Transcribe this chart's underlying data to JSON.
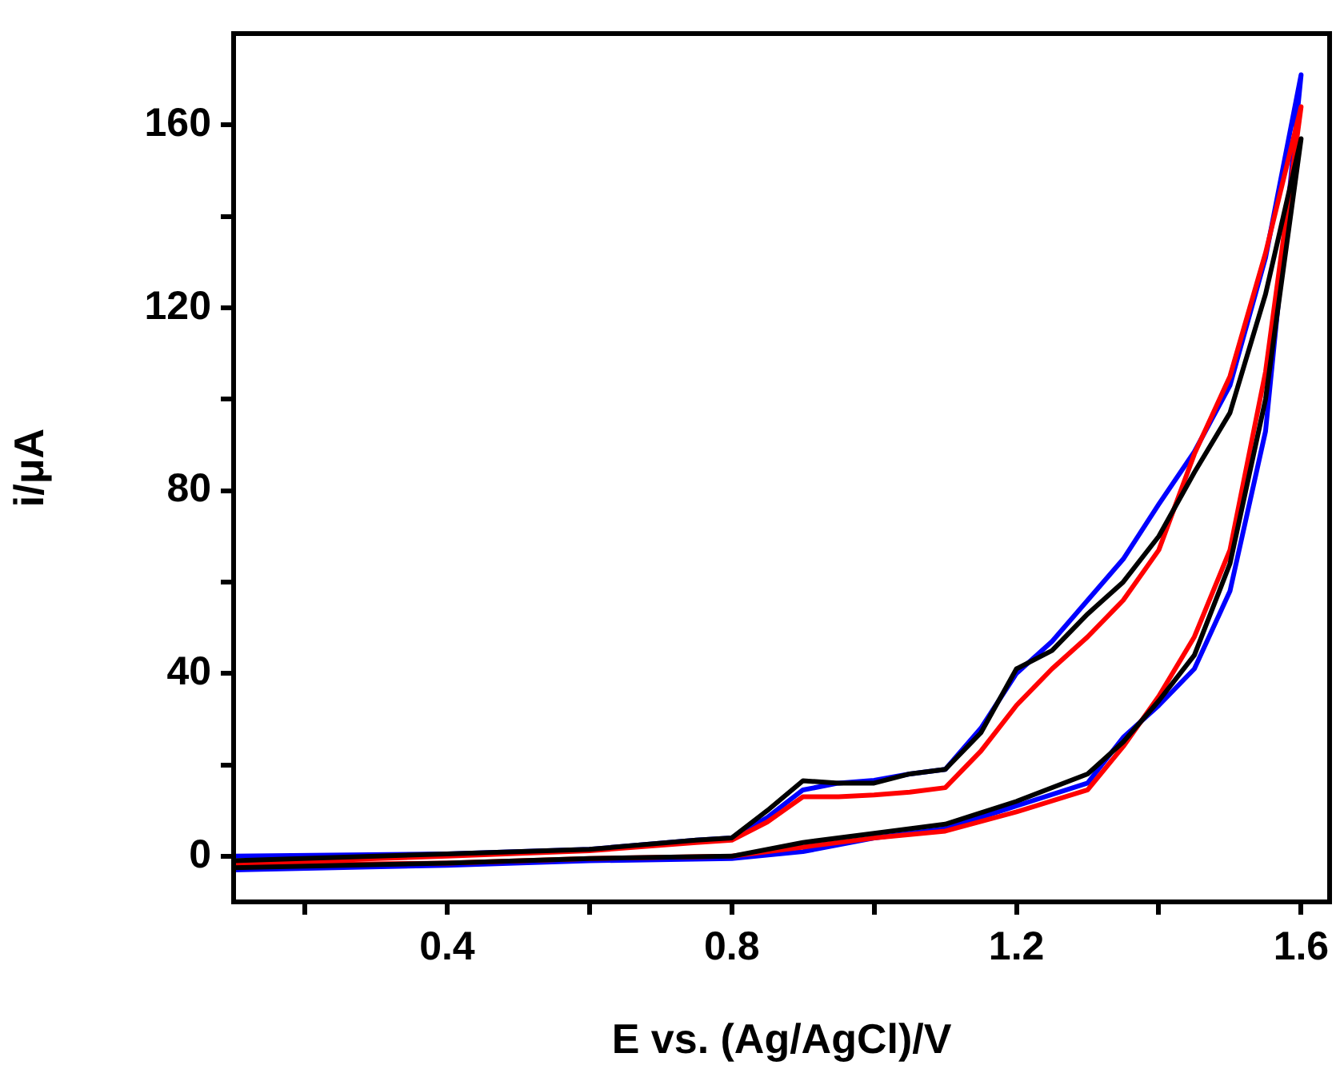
{
  "chart_data": {
    "type": "line",
    "xlabel": "E vs. (Ag/AgCl)/V",
    "ylabel": "i/μA",
    "xlim": [
      0.1,
      1.64
    ],
    "ylim": [
      -10,
      180
    ],
    "xticks": [
      {
        "value": 0.2,
        "label": null
      },
      0.4,
      {
        "value": 0.6,
        "label": null
      },
      0.8,
      {
        "value": 1.0,
        "label": null
      },
      1.2,
      {
        "value": 1.4,
        "label": null
      },
      1.6
    ],
    "yticks": [
      0,
      {
        "value": 20,
        "label": null
      },
      40,
      {
        "value": 60,
        "label": null
      },
      80,
      {
        "value": 100,
        "label": null
      },
      120,
      {
        "value": 140,
        "label": null
      },
      160
    ],
    "grid": false,
    "legend": false,
    "marker": "none",
    "line_style": "solid",
    "series": [
      {
        "color": "#000000",
        "x": [
          0.1,
          0.4,
          0.6,
          0.75,
          0.8,
          0.85,
          0.9,
          0.95,
          1.0,
          1.05,
          1.1,
          1.15,
          1.2,
          1.25,
          1.3,
          1.35,
          1.4,
          1.45,
          1.5,
          1.55,
          1.6,
          1.55,
          1.5,
          1.45,
          1.4,
          1.35,
          1.3,
          1.2,
          1.1,
          1.0,
          0.9,
          0.8,
          0.6,
          0.4,
          0.1
        ],
        "values": [
          -1,
          0.5,
          1.5,
          3.5,
          4,
          10,
          16.5,
          16,
          16,
          18,
          19,
          27,
          41,
          45,
          53,
          60,
          70,
          84,
          97,
          123,
          157,
          100,
          64,
          44,
          34,
          25,
          18,
          12,
          7,
          5,
          3,
          0,
          -0.5,
          -1.5,
          -2.5
        ]
      },
      {
        "color": "#ff0000",
        "x": [
          0.1,
          0.4,
          0.6,
          0.75,
          0.8,
          0.85,
          0.9,
          0.95,
          1.0,
          1.05,
          1.1,
          1.15,
          1.2,
          1.25,
          1.3,
          1.35,
          1.4,
          1.45,
          1.5,
          1.55,
          1.6,
          1.55,
          1.5,
          1.45,
          1.4,
          1.35,
          1.3,
          1.2,
          1.1,
          1.0,
          0.9,
          0.8,
          0.6,
          0.4,
          0.1
        ],
        "values": [
          -1.5,
          0,
          1.2,
          3,
          3.5,
          7.5,
          13,
          13,
          13.4,
          14,
          15,
          23,
          33,
          41,
          48,
          56,
          67,
          88,
          105,
          132,
          164,
          106,
          67,
          48,
          35,
          24,
          14.5,
          9.7,
          5.5,
          4,
          2,
          0,
          -0.5,
          -1.5,
          -2
        ]
      },
      {
        "color": "#0000ff",
        "x": [
          0.1,
          0.4,
          0.6,
          0.75,
          0.8,
          0.85,
          0.9,
          0.95,
          1.0,
          1.05,
          1.1,
          1.15,
          1.2,
          1.25,
          1.3,
          1.35,
          1.4,
          1.45,
          1.5,
          1.55,
          1.6,
          1.55,
          1.5,
          1.45,
          1.4,
          1.35,
          1.3,
          1.2,
          1.1,
          1.0,
          0.9,
          0.8,
          0.6,
          0.4,
          0.1
        ],
        "values": [
          0,
          0.5,
          1.5,
          3.5,
          4,
          8.5,
          14.5,
          16,
          16.6,
          18,
          19,
          28,
          40,
          47,
          56,
          65,
          77,
          88.5,
          103,
          131,
          171,
          93,
          58,
          41,
          33,
          26,
          16,
          11,
          6,
          4,
          1,
          -0.5,
          -1,
          -2,
          -3
        ]
      }
    ]
  }
}
